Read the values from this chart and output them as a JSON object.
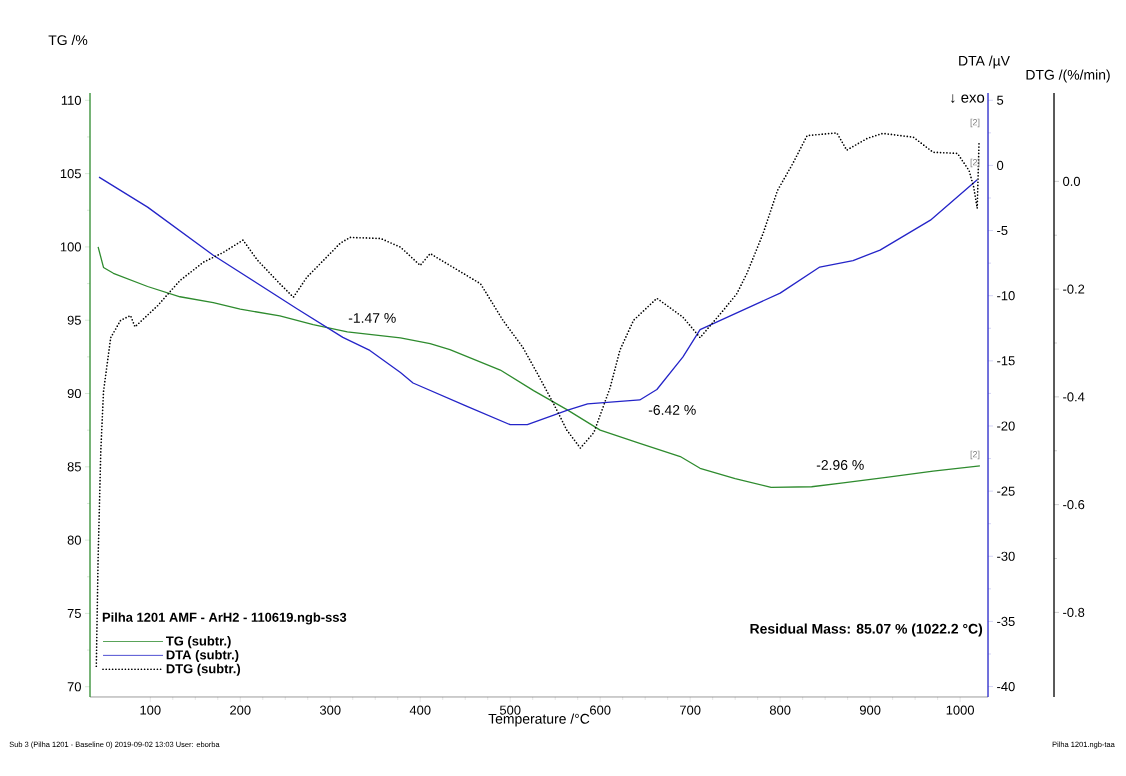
{
  "chart_data": {
    "type": "line",
    "xlabel": "Temperature /°C",
    "ylabel": "TG /%",
    "y2label": "DTA /µV",
    "y3label": "DTG /(%/min)",
    "legend_title": "Pilha 1201 AMF - ArH2 - 110619.ngb-ss3",
    "xlim": [
      33,
      1031
    ],
    "xticks": [
      100,
      200,
      300,
      400,
      500,
      600,
      700,
      800,
      900,
      1000
    ],
    "ylim": [
      69.3,
      110.5
    ],
    "yticks": [
      70,
      75,
      80,
      85,
      90,
      95,
      100,
      105,
      110
    ],
    "y2lim": [
      -40.8,
      5.56
    ],
    "y2ticks": [
      -40,
      -35,
      -30,
      -25,
      -20,
      -15,
      -10,
      -5,
      0,
      5
    ],
    "y3lim": [
      -0.957,
      0.164
    ],
    "y3ticks": [
      -0.8,
      -0.6,
      -0.4,
      -0.2,
      {
        "value": 0,
        "label": "0.0"
      }
    ],
    "legend": "bottom left",
    "grid": false,
    "marker": "none",
    "series": [
      {
        "name": "TG (subtr.)",
        "color": "#2e8b2e",
        "line_style": "solid",
        "x": [
          42,
          48,
          59,
          97,
          133,
          170,
          200,
          244,
          281,
          319,
          378,
          411,
          433,
          489,
          526,
          563,
          600,
          644,
          689,
          711,
          750,
          790,
          835,
          870,
          920,
          970,
          1022
        ],
        "values": [
          100,
          98.6,
          98.2,
          97.3,
          96.6,
          96.2,
          95.75,
          95.3,
          94.7,
          94.2,
          93.8,
          93.4,
          93.0,
          91.6,
          90.2,
          88.9,
          87.5,
          86.6,
          85.7,
          84.9,
          84.2,
          83.6,
          83.64,
          83.9,
          84.3,
          84.7,
          85.07
        ]
      },
      {
        "name": "DTA (subtr.)",
        "color": "#2424c8",
        "axis": "y2",
        "line_style": "solid",
        "x": [
          43,
          97,
          170,
          263,
          314,
          344,
          378,
          392,
          452,
          500,
          519,
          563,
          586,
          644,
          663,
          692,
          711,
          800,
          844,
          881,
          911,
          967,
          1019
        ],
        "values": [
          -0.9,
          -3.2,
          -6.9,
          -11.0,
          -13.2,
          -14.2,
          -15.9,
          -16.7,
          -18.5,
          -19.9,
          -19.9,
          -18.8,
          -18.3,
          -18.0,
          -17.2,
          -14.7,
          -12.6,
          -9.8,
          -7.8,
          -7.3,
          -6.5,
          -4.2,
          -1.1
        ]
      },
      {
        "name": "DTG (subtr.)",
        "color": "#000000",
        "axis": "y3",
        "line_style": "dotted",
        "x": [
          40,
          42,
          45,
          48,
          56,
          67,
          78,
          83,
          108,
          133,
          159,
          181,
          203,
          219,
          244,
          259,
          274,
          311,
          322,
          356,
          378,
          400,
          411,
          437,
          467,
          492,
          514,
          530,
          548,
          563,
          578,
          593,
          611,
          622,
          637,
          663,
          692,
          711,
          737,
          752,
          763,
          781,
          797,
          814,
          830,
          863,
          874,
          897,
          914,
          948,
          970,
          997,
          1010,
          1015,
          1019,
          1021
        ],
        "values": [
          -0.9,
          -0.7,
          -0.5,
          -0.39,
          -0.29,
          -0.258,
          -0.249,
          -0.27,
          -0.231,
          -0.184,
          -0.15,
          -0.132,
          -0.109,
          -0.146,
          -0.19,
          -0.215,
          -0.178,
          -0.115,
          -0.104,
          -0.106,
          -0.122,
          -0.156,
          -0.134,
          -0.16,
          -0.19,
          -0.258,
          -0.308,
          -0.356,
          -0.412,
          -0.462,
          -0.495,
          -0.466,
          -0.383,
          -0.313,
          -0.258,
          -0.217,
          -0.252,
          -0.29,
          -0.239,
          -0.208,
          -0.171,
          -0.097,
          -0.017,
          0.033,
          0.085,
          0.09,
          0.058,
          0.08,
          0.089,
          0.082,
          0.054,
          0.052,
          0.02,
          -0.01,
          -0.05,
          0.07
        ]
      }
    ],
    "annotations": [
      "-1.47 %",
      "-6.42 %",
      "-2.96 %",
      "[2]",
      "[2]",
      "[2]",
      "↓ exo",
      "Residual Mass: 85.07 % (1022.2 °C)",
      "Sub 3 (Pilha 1201 - Baseline 0)   2019-09-02 13:03   User: eborba",
      "Pilha 1201.ngb-taa"
    ]
  }
}
